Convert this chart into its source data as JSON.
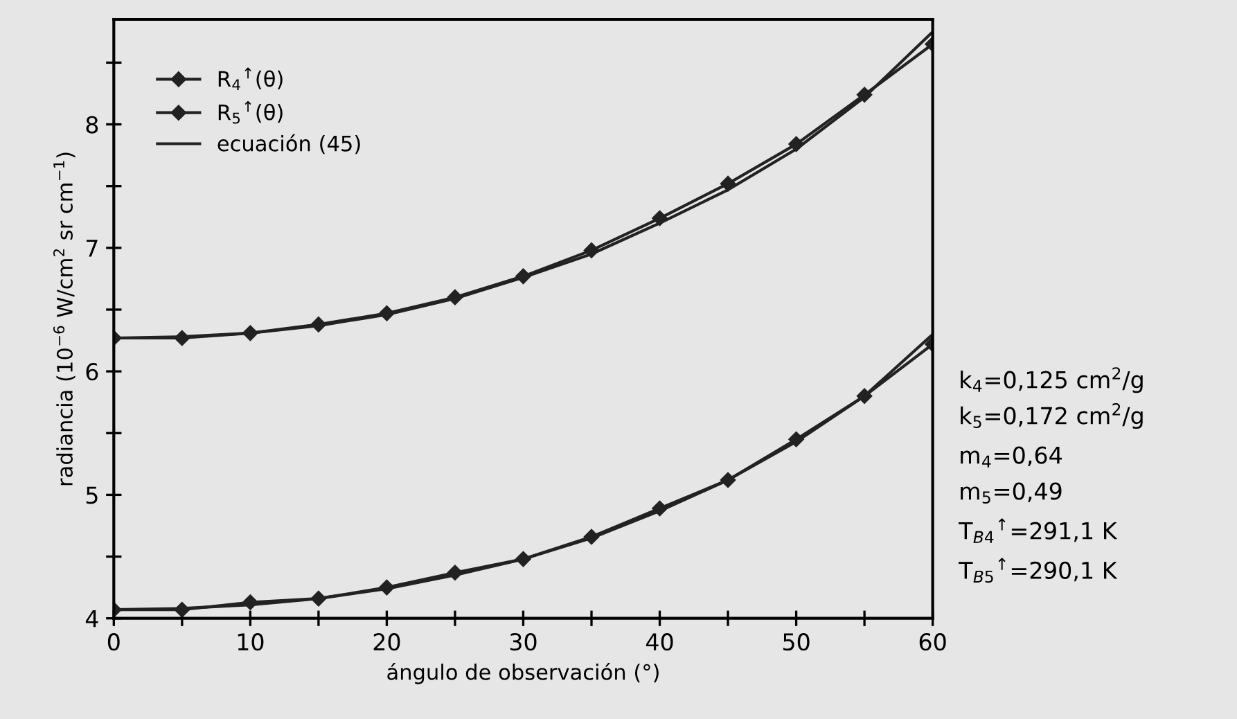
{
  "chart_data": {
    "type": "line",
    "xlabel": "ángulo de observación (°)",
    "ylabel": "radiancia (10$^{−6}$ W/cm$^{2}$ sr cm$^{−1}$)",
    "x": [
      0,
      5,
      10,
      15,
      20,
      25,
      30,
      35,
      40,
      45,
      50,
      55,
      60
    ],
    "series": [
      {
        "name": "R$_{4}$$^{↑}$(θ)",
        "color": "#222222",
        "marker": "diamond",
        "values": [
          6.27,
          6.27,
          6.31,
          6.38,
          6.47,
          6.6,
          6.77,
          6.98,
          7.24,
          7.52,
          7.84,
          8.24,
          8.65
        ]
      },
      {
        "name": "R$_{5}$$^{↑}$(θ)",
        "color": "#222222",
        "marker": "diamond",
        "values": [
          4.07,
          4.07,
          4.13,
          4.16,
          4.25,
          4.37,
          4.48,
          4.66,
          4.89,
          5.12,
          5.45,
          5.8,
          6.22
        ]
      },
      {
        "name": "ecuación (45)",
        "color": "#222222",
        "marker": "none",
        "values": [
          6.27,
          6.28,
          6.31,
          6.37,
          6.46,
          6.59,
          6.76,
          6.95,
          7.2,
          7.47,
          7.8,
          8.22,
          8.75
        ]
      },
      {
        "color": "#222222",
        "marker": "none",
        "values": [
          4.07,
          4.08,
          4.11,
          4.16,
          4.24,
          4.35,
          4.48,
          4.65,
          4.87,
          5.12,
          5.43,
          5.8,
          6.3
        ]
      }
    ],
    "xlim": [
      0,
      60
    ],
    "xticks": [
      0,
      {
        "value": 5,
        "label": null
      },
      10,
      {
        "value": 15,
        "label": null
      },
      20,
      {
        "value": 25,
        "label": null
      },
      30,
      {
        "value": 35,
        "label": null
      },
      40,
      {
        "value": 45,
        "label": null
      },
      50,
      {
        "value": 55,
        "label": null
      },
      60
    ],
    "ylim": [
      4,
      8.85
    ],
    "yticks": [
      4,
      {
        "value": 4.5,
        "label": null
      },
      5,
      {
        "value": 5.5,
        "label": null
      },
      6,
      {
        "value": 6.5,
        "label": null
      },
      7,
      {
        "value": 7.5,
        "label": null
      },
      8,
      {
        "value": 8.5,
        "label": null
      }
    ],
    "legend": "top left",
    "grid": false,
    "line_style": "solid",
    "annotations": [
      "k$_{4}$=0,125 cm$^{2}$/g",
      "k$_{5}$=0,172 cm$^{2}$/g",
      "m$_{4}$=0,64",
      "m$_{5}$=0,49",
      "T$_{B4}$$^{↑}$=291,1 K",
      "T$_{B5}$$^{↑}$=290,1 K"
    ]
  }
}
